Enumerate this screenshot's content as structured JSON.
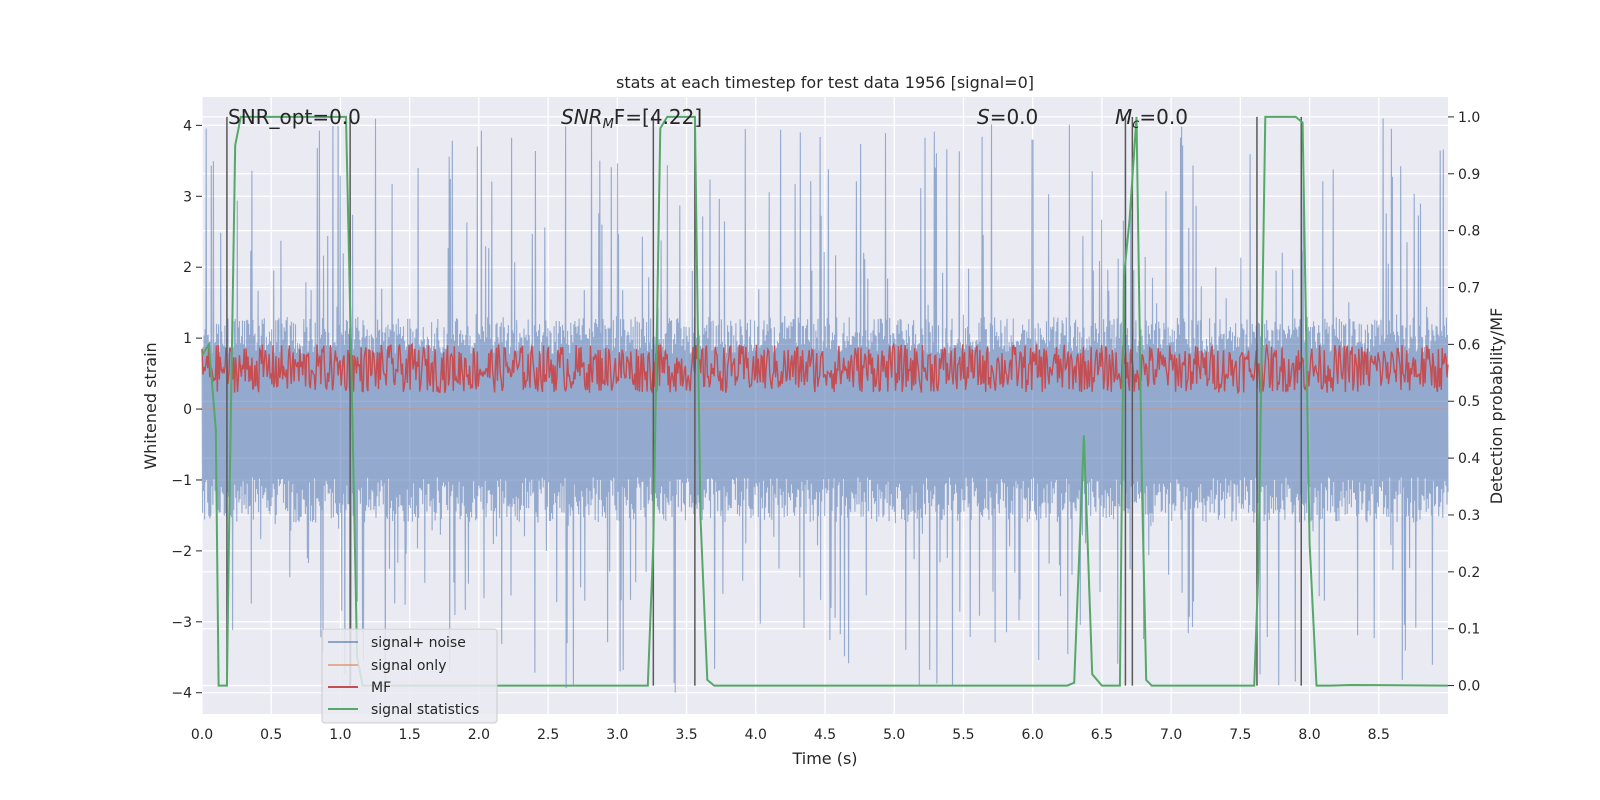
{
  "chart_data": {
    "type": "line",
    "title": "stats at each timestep for test data 1956 [signal=0]",
    "xlabel": "Time (s)",
    "ylabel": "Whitened strain",
    "ylabel_right": "Detection probability/MF",
    "xlim": [
      0.0,
      9.0
    ],
    "ylim": [
      -4.3,
      4.4
    ],
    "ylim_right": [
      -0.05,
      1.035
    ],
    "x_ticks": [
      "0.0",
      "0.5",
      "1.0",
      "1.5",
      "2.0",
      "2.5",
      "3.0",
      "3.5",
      "4.0",
      "4.5",
      "5.0",
      "5.5",
      "6.0",
      "6.5",
      "7.0",
      "7.5",
      "8.0",
      "8.5"
    ],
    "y_ticks": [
      "−4",
      "−3",
      "−2",
      "−1",
      "0",
      "1",
      "2",
      "3",
      "4"
    ],
    "y_right_ticks": [
      "0.0",
      "0.1",
      "0.2",
      "0.3",
      "0.4",
      "0.5",
      "0.6",
      "0.7",
      "0.8",
      "0.9",
      "1.0"
    ],
    "grid": true,
    "legend_position": "lower-left",
    "annotations": {
      "snr_opt": {
        "label": "SNR_opt=0.0"
      },
      "snr_mf": {
        "base": "SNR",
        "sub": "M",
        "rest": "F=[4.22]"
      },
      "s": {
        "var": "S",
        "rest": "=0.0"
      },
      "mc": {
        "base": "M",
        "sub": "c",
        "rest": "=0.0"
      }
    },
    "series": [
      {
        "name": "signal+ noise",
        "color": "#4c72b0",
        "axis": "left",
        "description_of_shape": "dense white-noise strain",
        "envelope_upper": 1.3,
        "envelope_lower": -1.6,
        "spike_max": 4.1,
        "spike_min": -4.0
      },
      {
        "name": "signal only",
        "color": "#dd8452",
        "axis": "left",
        "x": [
          0.0,
          9.0
        ],
        "y": [
          0.0,
          0.0
        ]
      },
      {
        "name": "MF",
        "color": "#c44e52",
        "axis": "right",
        "baseline": 0.5,
        "upper": 0.6
      },
      {
        "name": "signal statistics",
        "color": "#55a868",
        "axis": "right",
        "x": [
          0.0,
          0.05,
          0.1,
          0.12,
          0.18,
          0.2,
          0.24,
          0.28,
          1.0,
          1.04,
          1.08,
          1.12,
          1.16,
          3.22,
          3.26,
          3.31,
          3.36,
          3.56,
          3.6,
          3.65,
          3.7,
          6.25,
          6.3,
          6.37,
          6.43,
          6.5,
          6.63,
          6.66,
          6.7,
          6.75,
          6.79,
          6.82,
          6.86,
          7.6,
          7.63,
          7.68,
          7.72,
          7.9,
          7.95,
          8.0,
          8.05,
          8.15,
          8.3,
          9.0
        ],
        "y": [
          0.58,
          0.6,
          0.45,
          0.0,
          0.0,
          0.35,
          0.95,
          1.0,
          1.0,
          1.0,
          0.55,
          0.05,
          0.0,
          0.0,
          0.25,
          0.98,
          1.0,
          1.0,
          0.3,
          0.01,
          0.0,
          0.0,
          0.005,
          0.44,
          0.02,
          0.0,
          0.0,
          0.72,
          0.82,
          1.0,
          0.35,
          0.01,
          0.0,
          0.0,
          0.2,
          1.0,
          1.0,
          1.0,
          0.99,
          0.25,
          0.0,
          0.0,
          0.001,
          0.0
        ]
      },
      {
        "name": "markers",
        "color": "#595959",
        "axis": "right",
        "x": [
          0.18,
          1.07,
          3.26,
          3.56,
          6.67,
          6.72,
          7.62,
          7.94
        ]
      }
    ]
  }
}
